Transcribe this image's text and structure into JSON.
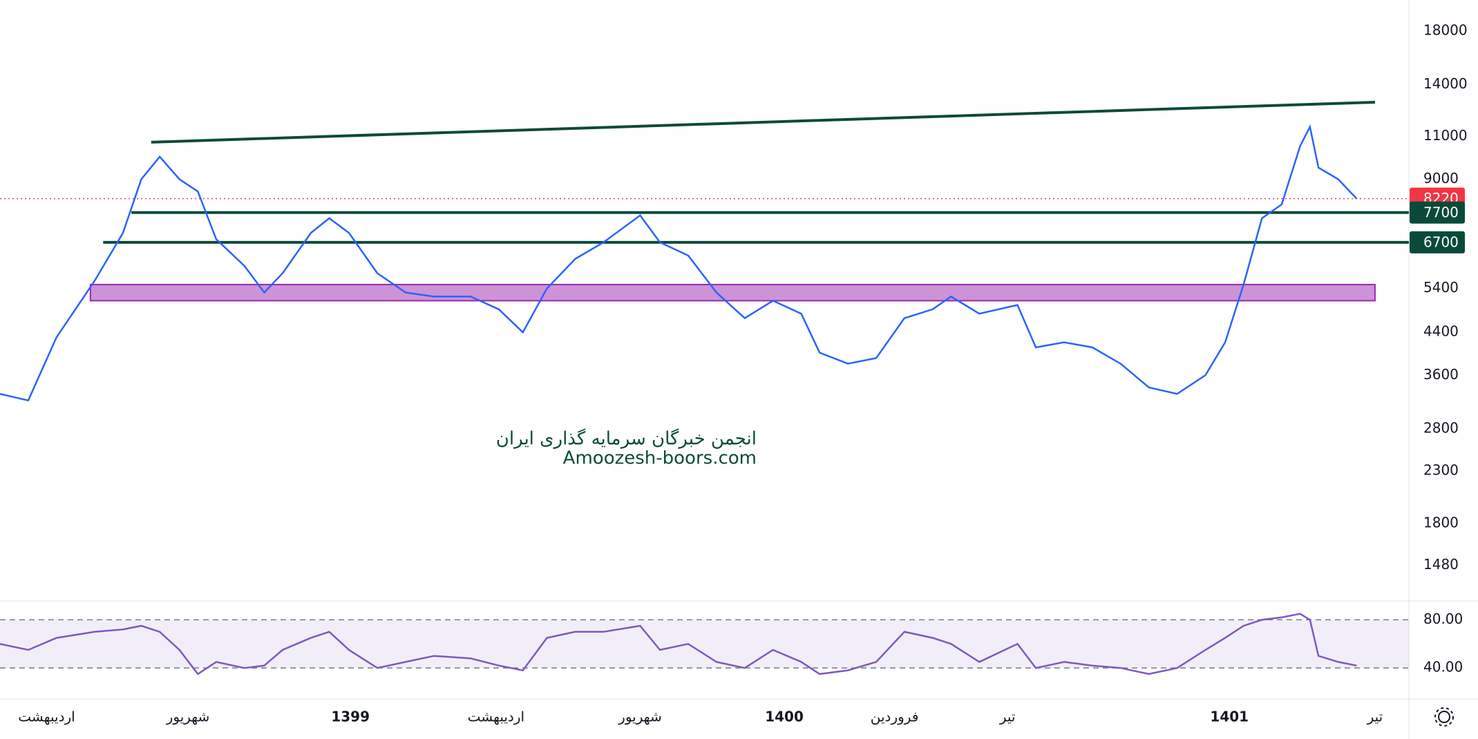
{
  "chart_data": [
    {
      "type": "line",
      "log_scale": true,
      "color": "#2962ff",
      "x": [
        0,
        2,
        4,
        6.7,
        8.7,
        10,
        11.3,
        12.7,
        14,
        15.3,
        17.3,
        18.7,
        20,
        22,
        23.3,
        24.7,
        26.7,
        28.7,
        30.7,
        33.3,
        35.3,
        37,
        38.7,
        40.7,
        42.7,
        45.3,
        46.7,
        48.7,
        50.7,
        52.7,
        54.7,
        56.7,
        58,
        60,
        62,
        64,
        66,
        67.3,
        69.3,
        72,
        73.3,
        75.3,
        77.3,
        79.3,
        81.3,
        83.3,
        85.3,
        86.7,
        88,
        89.3,
        90.7,
        92,
        92.7,
        93.3,
        94.7,
        96
      ],
      "values": [
        3300,
        3200,
        4300,
        5600,
        7000,
        9000,
        10000,
        9000,
        8500,
        6800,
        6000,
        5300,
        5800,
        7000,
        7500,
        7000,
        5800,
        5300,
        5200,
        5200,
        4900,
        4400,
        5400,
        6200,
        6700,
        7600,
        6700,
        6300,
        5300,
        4700,
        5100,
        4800,
        4000,
        3800,
        3900,
        4700,
        4900,
        5200,
        4800,
        5000,
        4100,
        4200,
        4100,
        3800,
        3400,
        3300,
        3600,
        4200,
        5500,
        7500,
        8000,
        10500,
        11500,
        9500,
        9000,
        8220
      ],
      "xlim": [
        0,
        99.7
      ],
      "ylim": [
        1262,
        20800
      ],
      "yticks": [
        18000,
        14000,
        11000,
        9000,
        5400,
        4400,
        3600,
        2800,
        2300,
        1800,
        1480
      ],
      "xticks": [
        {
          "value": 3.3,
          "label": "اردیبهشت"
        },
        {
          "value": 13.3,
          "label": "شهریور"
        },
        {
          "value": 24.8,
          "label": "1399"
        },
        {
          "value": 35.1,
          "label": "اردیبهشت"
        },
        {
          "value": 45.3,
          "label": "شهریور"
        },
        {
          "value": 55.5,
          "label": "1400"
        },
        {
          "value": 63.3,
          "label": "فروردین"
        },
        {
          "value": 71.3,
          "label": "تیر"
        },
        {
          "value": 87,
          "label": "1401"
        },
        {
          "value": 97.3,
          "label": "تیر"
        }
      ],
      "levels": [
        {
          "value": 8220,
          "color": "#f23645",
          "x": [
            0,
            99.7
          ],
          "style": "dotted"
        },
        {
          "value": 7700,
          "color": "#0b4a3a",
          "x": [
            9.3,
            99.7
          ],
          "style": "solid"
        },
        {
          "value": 6700,
          "color": "#0b4a3a",
          "x": [
            7.3,
            99.7
          ],
          "style": "solid"
        }
      ],
      "trendline": {
        "x": [
          10.7,
          97.3
        ],
        "values": [
          10700,
          12900
        ],
        "color": "#0b4a3a"
      },
      "zone": {
        "x": [
          6.4,
          97.3
        ],
        "low": 5100,
        "high": 5500,
        "color": "#9c27b0"
      },
      "watermark": [
        "انجمن خبرگان سرمایه گذاری ایران",
        "Amoozesh-boors.com"
      ]
    },
    {
      "type": "line",
      "color": "#7e57c2",
      "x": [
        0,
        2,
        4,
        6.7,
        8.7,
        10,
        11.3,
        12.7,
        14,
        15.3,
        17.3,
        18.7,
        20,
        22,
        23.3,
        24.7,
        26.7,
        28.7,
        30.7,
        33.3,
        35.3,
        37,
        38.7,
        40.7,
        42.7,
        45.3,
        46.7,
        48.7,
        50.7,
        52.7,
        54.7,
        56.7,
        58,
        60,
        62,
        64,
        66,
        67.3,
        69.3,
        72,
        73.3,
        75.3,
        77.3,
        79.3,
        81.3,
        83.3,
        85.3,
        86.7,
        88,
        89.3,
        90.7,
        92,
        92.7,
        93.3,
        94.7,
        96
      ],
      "values": [
        60,
        55,
        65,
        70,
        72,
        75,
        70,
        55,
        35,
        45,
        40,
        42,
        55,
        65,
        70,
        55,
        40,
        45,
        50,
        48,
        42,
        38,
        65,
        70,
        70,
        75,
        55,
        60,
        45,
        40,
        55,
        45,
        35,
        38,
        45,
        70,
        65,
        60,
        45,
        60,
        40,
        45,
        42,
        40,
        35,
        40,
        55,
        65,
        75,
        80,
        82,
        85,
        80,
        50,
        45,
        42
      ],
      "xlim": [
        0,
        99.7
      ],
      "ylim": [
        16,
        94
      ],
      "yticks": [
        {
          "value": 80,
          "label": "80.00"
        },
        {
          "value": 40,
          "label": "40.00"
        }
      ]
    }
  ]
}
